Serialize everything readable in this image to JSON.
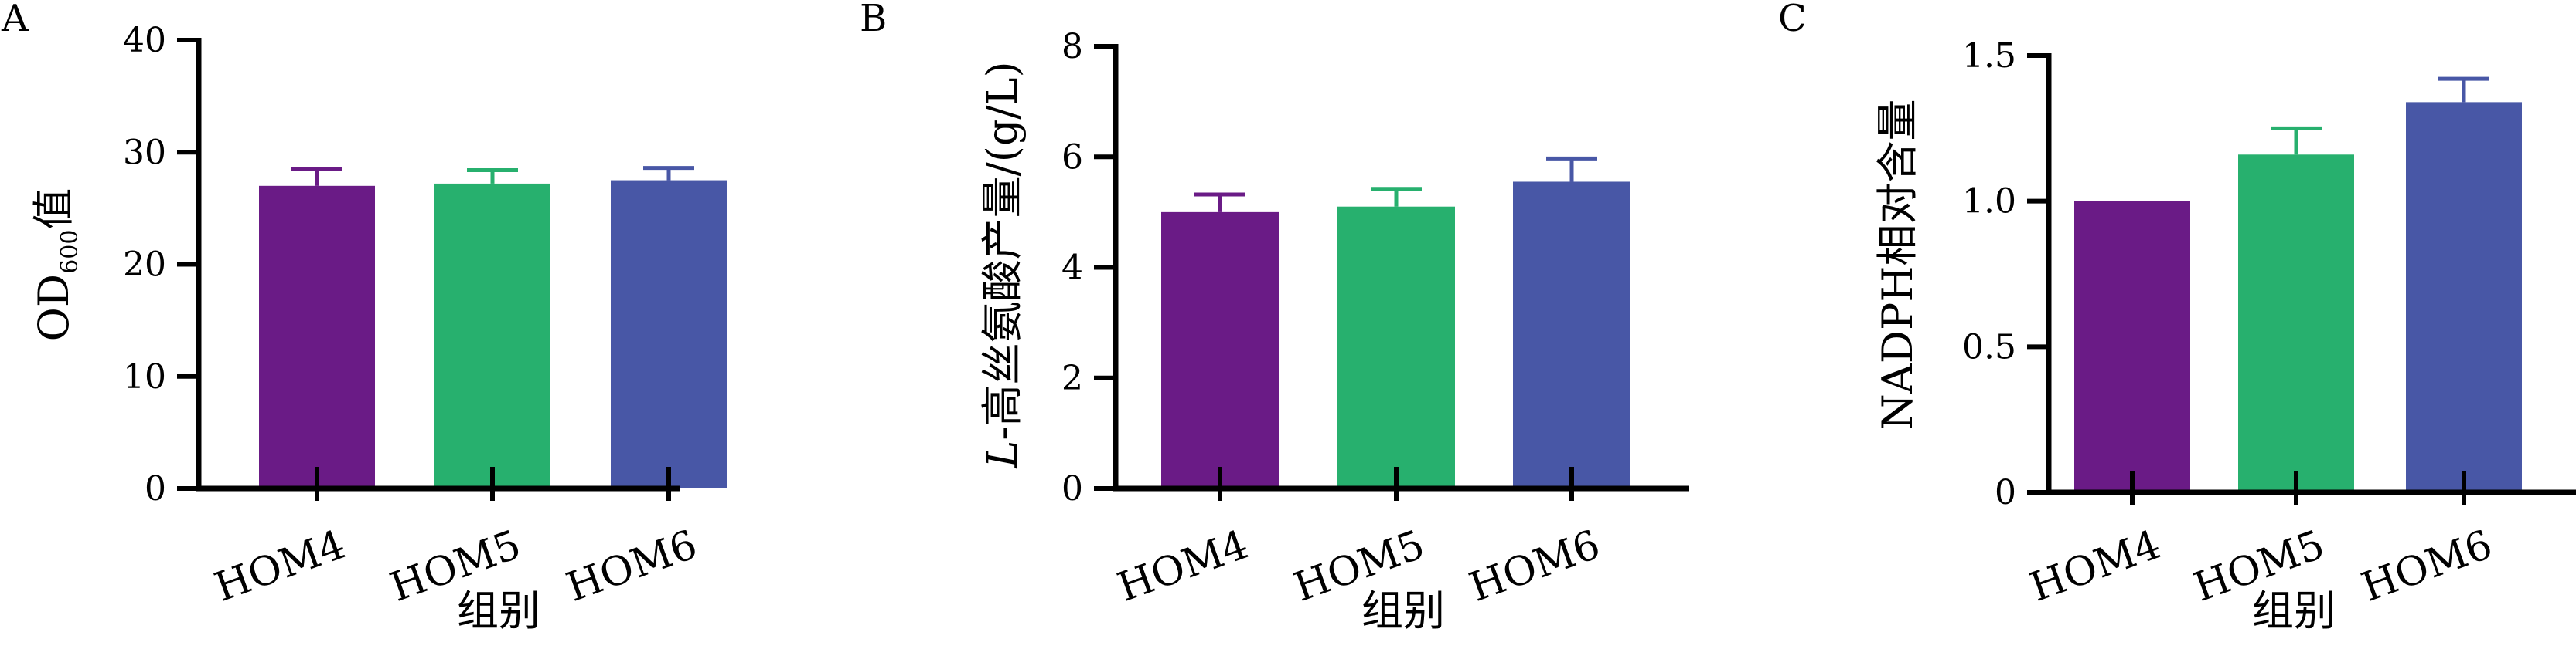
{
  "chart_data": [
    {
      "panel": "A",
      "type": "bar",
      "categories": [
        "HOM4",
        "HOM5",
        "HOM6"
      ],
      "values": [
        27.0,
        27.2,
        27.5
      ],
      "errors": [
        1.5,
        1.2,
        1.1
      ],
      "colors": [
        "#6a1b86",
        "#27b06e",
        "#4857a6"
      ],
      "ylim": [
        0,
        40
      ],
      "yticks": [
        "0",
        "10",
        "20",
        "30",
        "40"
      ],
      "ytick_values": [
        0,
        10,
        20,
        30,
        40
      ],
      "ylabel": "OD600值",
      "ylabel_main": "OD",
      "ylabel_sub": "600",
      "ylabel_suffix": "值",
      "xlabel": "组别",
      "grid": false
    },
    {
      "panel": "B",
      "type": "bar",
      "categories": [
        "HOM4",
        "HOM5",
        "HOM6"
      ],
      "values": [
        5.0,
        5.1,
        5.55
      ],
      "errors": [
        0.32,
        0.32,
        0.42
      ],
      "colors": [
        "#6a1b86",
        "#27b06e",
        "#4857a6"
      ],
      "ylim": [
        0,
        8
      ],
      "yticks": [
        "0",
        "2",
        "4",
        "6",
        "8"
      ],
      "ytick_values": [
        0,
        2,
        4,
        6,
        8
      ],
      "ylabel": "L-高丝氨酸产量/(g/L)",
      "ylabel_italic": "L",
      "ylabel_rest": "-高丝氨酸产量/(g/L)",
      "xlabel": "组别",
      "grid": false
    },
    {
      "panel": "C",
      "type": "bar",
      "categories": [
        "HOM4",
        "HOM5",
        "HOM6"
      ],
      "values": [
        1.0,
        1.16,
        1.34
      ],
      "errors": [
        0.0,
        0.09,
        0.08
      ],
      "colors": [
        "#6a1b86",
        "#27b06e",
        "#4857a6"
      ],
      "ylim": [
        0,
        1.5
      ],
      "yticks": [
        "0",
        "0.5",
        "1.0",
        "1.5"
      ],
      "ytick_values": [
        0,
        0.5,
        1.0,
        1.5
      ],
      "ylabel": "NADPH相对含量",
      "xlabel": "组别",
      "grid": false
    }
  ]
}
